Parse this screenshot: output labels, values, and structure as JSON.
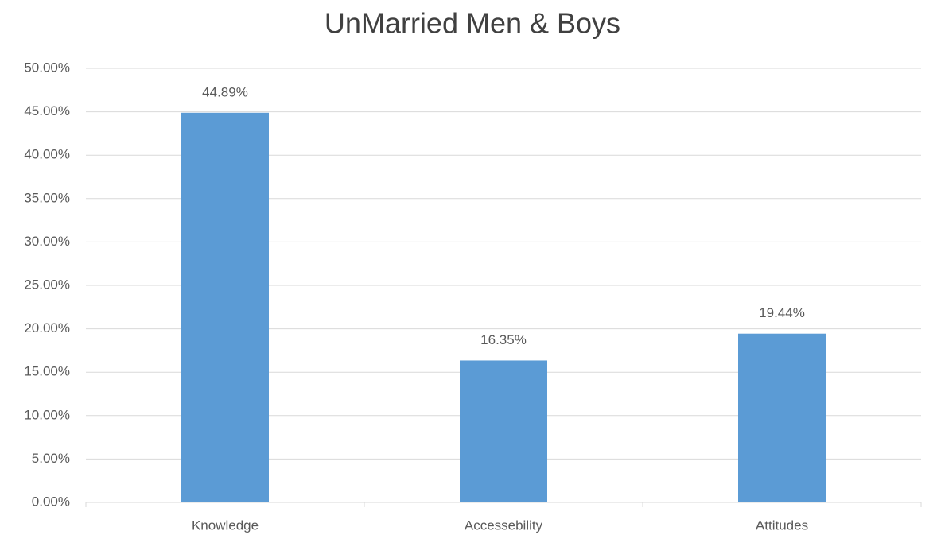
{
  "chart_data": {
    "type": "bar",
    "title": "UnMarried Men & Boys",
    "categories": [
      "Knowledge",
      "Accessebility",
      "Attitudes"
    ],
    "values": [
      44.89,
      16.35,
      19.44
    ],
    "value_labels": [
      "44.89%",
      "16.35%",
      "19.44%"
    ],
    "color": "#5b9bd5",
    "ylim": [
      0,
      50
    ],
    "yticks": [
      {
        "value": 0,
        "label": "0.00%"
      },
      {
        "value": 5,
        "label": "5.00%"
      },
      {
        "value": 10,
        "label": "10.00%"
      },
      {
        "value": 15,
        "label": "15.00%"
      },
      {
        "value": 20,
        "label": "20.00%"
      },
      {
        "value": 25,
        "label": "25.00%"
      },
      {
        "value": 30,
        "label": "30.00%"
      },
      {
        "value": 35,
        "label": "35.00%"
      },
      {
        "value": 40,
        "label": "40.00%"
      },
      {
        "value": 45,
        "label": "45.00%"
      },
      {
        "value": 50,
        "label": "50.00%"
      }
    ],
    "grid": true
  }
}
